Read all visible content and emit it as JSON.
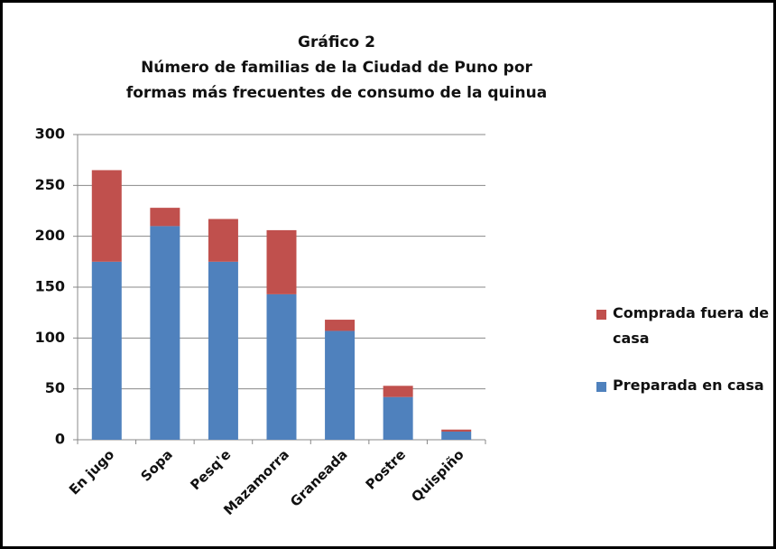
{
  "chart_data": {
    "type": "stacked_bar",
    "title": "Gráfico 2",
    "subtitle": "Número de familias de la Ciudad de Puno por formas más frecuentes de consumo de la quinua",
    "categories": [
      "En jugo",
      "Sopa",
      "Pesq'e",
      "Mazamorra",
      "Graneada",
      "Postre",
      "Quispiño"
    ],
    "series": [
      {
        "name": "Preparada en casa",
        "color": "#4f81bd",
        "values": [
          175,
          210,
          175,
          143,
          107,
          42,
          8
        ]
      },
      {
        "name": "Comprada fuera de casa",
        "color": "#c0504d",
        "values": [
          90,
          18,
          42,
          63,
          11,
          11,
          2
        ]
      }
    ],
    "ylim": [
      0,
      300
    ],
    "yticks": [
      0,
      50,
      100,
      150,
      200,
      250,
      300
    ],
    "grid": true,
    "legend": "right"
  }
}
